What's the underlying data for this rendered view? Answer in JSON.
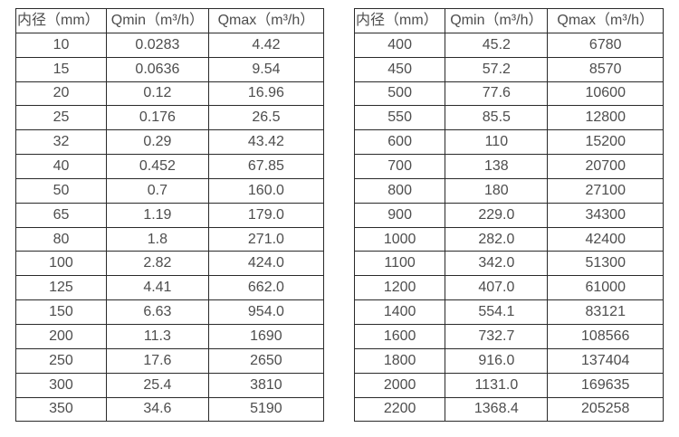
{
  "tables": [
    {
      "headers": [
        "内径（mm）",
        "Qmin（m³/h）",
        "Qmax（m³/h）"
      ],
      "rows": [
        [
          "10",
          "0.0283",
          "4.42"
        ],
        [
          "15",
          "0.0636",
          "9.54"
        ],
        [
          "20",
          "0.12",
          "16.96"
        ],
        [
          "25",
          "0.176",
          "26.5"
        ],
        [
          "32",
          "0.29",
          "43.42"
        ],
        [
          "40",
          "0.452",
          "67.85"
        ],
        [
          "50",
          "0.7",
          "160.0"
        ],
        [
          "65",
          "1.19",
          "179.0"
        ],
        [
          "80",
          "1.8",
          "271.0"
        ],
        [
          "100",
          "2.82",
          "424.0"
        ],
        [
          "125",
          "4.41",
          "662.0"
        ],
        [
          "150",
          "6.63",
          "954.0"
        ],
        [
          "200",
          "11.3",
          "1690"
        ],
        [
          "250",
          "17.6",
          "2650"
        ],
        [
          "300",
          "25.4",
          "3810"
        ],
        [
          "350",
          "34.6",
          "5190"
        ]
      ]
    },
    {
      "headers": [
        "内径（mm）",
        "Qmin（m³/h）",
        "Qmax（m³/h）"
      ],
      "rows": [
        [
          "400",
          "45.2",
          "6780"
        ],
        [
          "450",
          "57.2",
          "8570"
        ],
        [
          "500",
          "77.6",
          "10600"
        ],
        [
          "550",
          "85.5",
          "12800"
        ],
        [
          "600",
          "110",
          "15200"
        ],
        [
          "700",
          "138",
          "20700"
        ],
        [
          "800",
          "180",
          "27100"
        ],
        [
          "900",
          "229.0",
          "34300"
        ],
        [
          "1000",
          "282.0",
          "42400"
        ],
        [
          "1100",
          "342.0",
          "51300"
        ],
        [
          "1200",
          "407.0",
          "61000"
        ],
        [
          "1400",
          "554.1",
          "83121"
        ],
        [
          "1600",
          "732.7",
          "108566"
        ],
        [
          "1800",
          "916.0",
          "137404"
        ],
        [
          "2000",
          "1131.0",
          "169635"
        ],
        [
          "2200",
          "1368.4",
          "205258"
        ]
      ]
    }
  ],
  "colors": {
    "text": "#4d4d4d",
    "border": "#2a2a2a",
    "background": "#ffffff"
  }
}
